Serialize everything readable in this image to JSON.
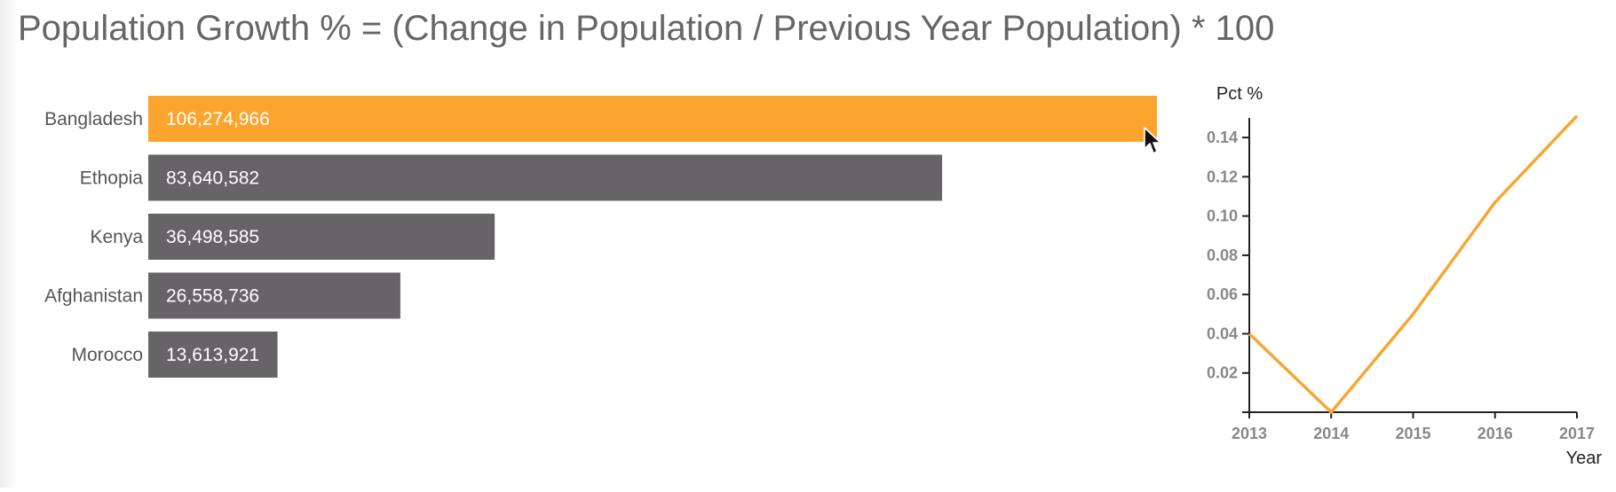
{
  "page": {
    "title": "Population Growth % = (Change in Population / Previous Year Population) * 100"
  },
  "chart_data": [
    {
      "type": "bar",
      "orientation": "horizontal",
      "categories": [
        "Bangladesh",
        "Ethopia",
        "Kenya",
        "Afghanistan",
        "Morocco"
      ],
      "values": [
        106274966,
        83640582,
        36498585,
        26558736,
        13613921
      ],
      "value_labels": [
        "106,274,966",
        "83,640,582",
        "36,498,585",
        "26,558,736",
        "13,613,921"
      ],
      "highlighted": "Bangladesh",
      "colors": {
        "default": "#666466",
        "highlight": "#fba52e"
      },
      "xlim": [
        0,
        106274966
      ]
    },
    {
      "type": "line",
      "x": [
        2013,
        2014,
        2015,
        2016,
        2017
      ],
      "y": [
        0.04,
        0.0,
        0.05,
        0.107,
        0.151
      ],
      "xlabel": "Year",
      "ylabel": "Pct %",
      "x_ticks": [
        "2013",
        "2014",
        "2015",
        "2016",
        "2017"
      ],
      "y_ticks": [
        "0.02",
        "0.04",
        "0.06",
        "0.08",
        "0.10",
        "0.12",
        "0.14"
      ],
      "ylim": [
        0,
        0.15
      ],
      "line_color": "#f6a733"
    }
  ]
}
